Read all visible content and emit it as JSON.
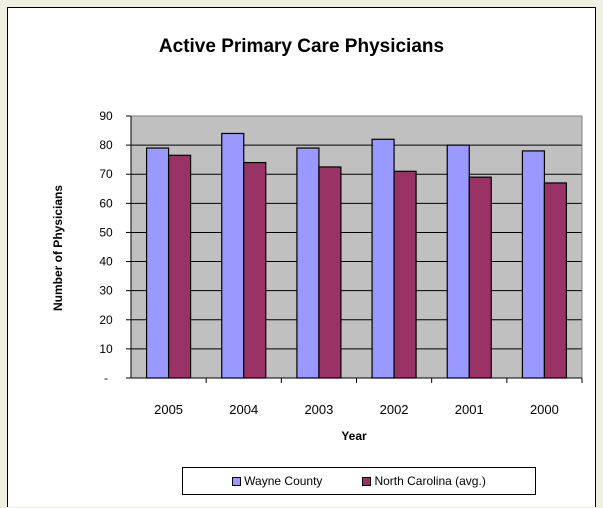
{
  "chart_data": {
    "type": "bar",
    "title": "Active Primary Care Physicians",
    "xlabel": "Year",
    "ylabel": "Number of Physicians",
    "categories": [
      "2005",
      "2004",
      "2003",
      "2002",
      "2001",
      "2000"
    ],
    "series": [
      {
        "name": "Wayne County",
        "values": [
          79,
          84,
          79,
          82,
          80,
          78
        ],
        "color": "#9999ff"
      },
      {
        "name": "North Carolina (avg.)",
        "values": [
          76.5,
          74,
          72.5,
          71,
          69,
          67
        ],
        "color": "#993366"
      }
    ],
    "ylim": [
      0,
      90
    ],
    "yticks": [
      0,
      10,
      20,
      30,
      40,
      50,
      60,
      70,
      80,
      90
    ],
    "ytick_labels": [
      "-",
      "10",
      "20",
      "30",
      "40",
      "50",
      "60",
      "70",
      "80",
      "90"
    ],
    "grid": true,
    "plot_background": "#c0c0c0",
    "legend": "bottom"
  }
}
